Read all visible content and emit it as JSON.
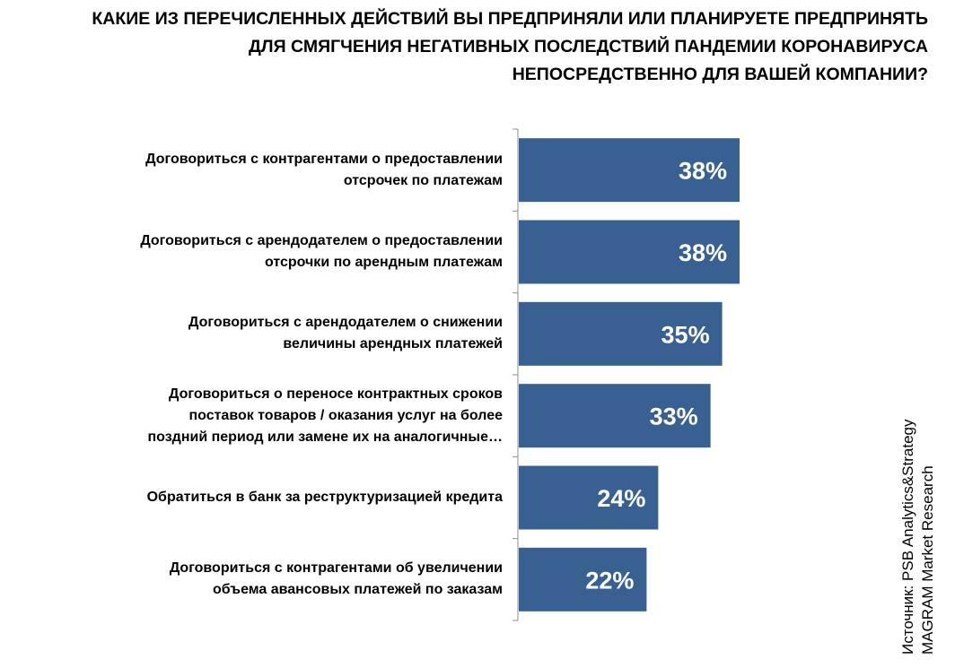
{
  "chart_data": {
    "type": "bar",
    "orientation": "horizontal",
    "title_lines": [
      "КАКИЕ ИЗ ПЕРЕЧИСЛЕННЫХ ДЕЙСТВИЙ ВЫ ПРЕДПРИНЯЛИ ИЛИ ПЛАНИРУЕТЕ ПРЕДПРИНЯТЬ",
      "ДЛЯ СМЯГЧЕНИЯ НЕГАТИВНЫХ ПОСЛЕДСТВИЙ ПАНДЕМИИ КОРОНАВИРУСА",
      "НЕПОСРЕДСТВЕННО ДЛЯ ВАШЕЙ КОМПАНИИ?"
    ],
    "categories": [
      [
        "Договориться с контрагентами о предоставлении",
        "отсрочек по платежам"
      ],
      [
        "Договориться с арендодателем о предоставлении",
        "отсрочки по арендным платежам"
      ],
      [
        "Договориться с арендодателем о снижении",
        "величины арендных платежей"
      ],
      [
        "Договориться о переносе контрактных сроков",
        "поставок товаров / оказания услуг на более",
        "поздний период или замене их на аналогичные…"
      ],
      [
        "Обратиться в банк за реструктуризацией кредита"
      ],
      [
        "Договориться с контрагентами об увеличении",
        "объема авансовых платежей по заказам"
      ]
    ],
    "values": [
      38,
      38,
      35,
      33,
      24,
      22
    ],
    "data_labels": [
      "38%",
      "38%",
      "35%",
      "33%",
      "24%",
      "22%"
    ],
    "unit": "%",
    "bar_color": "#386192",
    "label_color": "#ffffff",
    "grid": false,
    "legend": "none"
  },
  "source_lines": [
    "Источник: PSB Analytics&Strategy",
    "MAGRAM Market Research"
  ]
}
